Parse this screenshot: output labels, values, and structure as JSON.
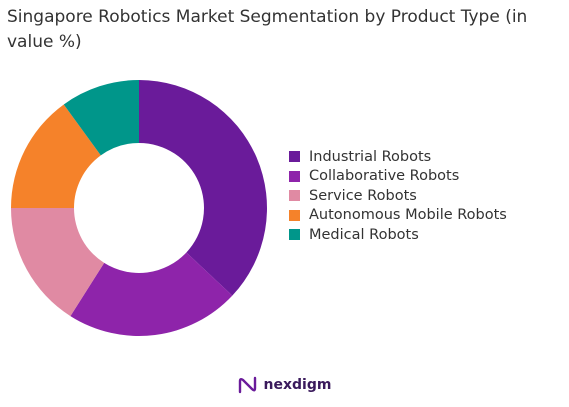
{
  "chart_data": {
    "type": "pie",
    "title": "Singapore Robotics Market Segmentation by Product Type (in value %)",
    "categories": [
      "Industrial Robots",
      "Collaborative Robots",
      "Service Robots",
      "Autonomous Mobile Robots",
      "Medical Robots"
    ],
    "values": [
      37,
      22,
      16,
      15,
      10
    ],
    "unit": "%",
    "colors": [
      "#6a1b9a",
      "#8e24aa",
      "#e08aa3",
      "#f5822a",
      "#00968a"
    ],
    "donut": true,
    "legend_position": "right"
  },
  "brand": {
    "name": "nexdigm",
    "icon": "nexdigm-logo-icon",
    "color": "#3a1a5c"
  }
}
